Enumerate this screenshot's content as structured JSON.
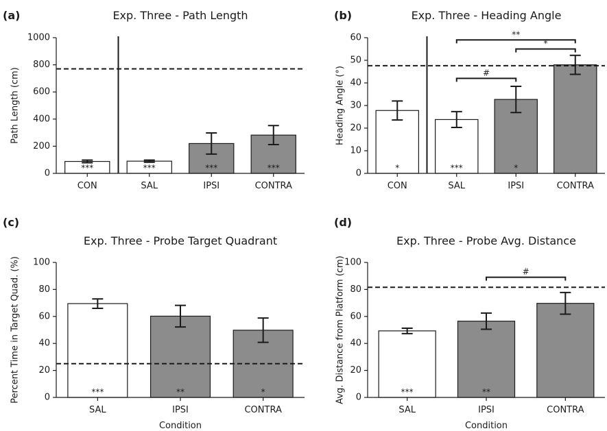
{
  "colors": {
    "sal_con_fill": "#ffffff",
    "treatment_fill": "#8c8c8c",
    "edge": "#1a1a1a"
  },
  "chart_data": [
    {
      "id": "a",
      "panel_label": "(a)",
      "type": "bar",
      "title": "Exp. Three - Path Length",
      "xlabel": "",
      "ylabel": "Path Length (cm)",
      "ylim": [
        0,
        1000
      ],
      "yticks": [
        0,
        200,
        400,
        600,
        800,
        1000
      ],
      "categories": [
        "CON",
        "SAL",
        "IPSI",
        "CONTRA"
      ],
      "values": [
        88,
        90,
        220,
        282
      ],
      "errors": [
        10,
        8,
        78,
        70
      ],
      "fills": [
        "white",
        "white",
        "gray",
        "gray"
      ],
      "bar_labels": [
        "***",
        "***",
        "***",
        "***"
      ],
      "reference_line": 770,
      "separator_after_index": 0,
      "comparisons": []
    },
    {
      "id": "b",
      "panel_label": "(b)",
      "type": "bar",
      "title": "Exp. Three - Heading Angle",
      "xlabel": "",
      "ylabel": "Heading Angle (°)",
      "ylim": [
        0,
        60
      ],
      "yticks": [
        0,
        10,
        20,
        30,
        40,
        50,
        60
      ],
      "categories": [
        "CON",
        "SAL",
        "IPSI",
        "CONTRA"
      ],
      "values": [
        27.8,
        23.8,
        32.7,
        48.0
      ],
      "errors": [
        4.2,
        3.5,
        5.8,
        4.2
      ],
      "fills": [
        "white",
        "white",
        "gray",
        "gray"
      ],
      "bar_labels": [
        "*",
        "***",
        "*",
        ""
      ],
      "reference_line": 47.6,
      "separator_after_index": 0,
      "comparisons": [
        {
          "from": 1,
          "to": 2,
          "y": 42,
          "label": "#"
        },
        {
          "from": 2,
          "to": 3,
          "y": 55,
          "label": "*"
        },
        {
          "from": 1,
          "to": 3,
          "y": 59,
          "label": "**"
        }
      ]
    },
    {
      "id": "c",
      "panel_label": "(c)",
      "type": "bar",
      "title": "Exp. Three - Probe Target Quadrant",
      "xlabel": "Condition",
      "ylabel": "Percent Time in Target Quad. (%)",
      "ylim": [
        0,
        100
      ],
      "yticks": [
        0,
        20,
        40,
        60,
        80,
        100
      ],
      "categories": [
        "SAL",
        "IPSI",
        "CONTRA"
      ],
      "values": [
        69.5,
        60.2,
        49.8
      ],
      "errors": [
        3.5,
        8,
        9
      ],
      "fills": [
        "white",
        "gray",
        "gray"
      ],
      "bar_labels": [
        "***",
        "**",
        "*"
      ],
      "reference_line": 25,
      "separator_after_index": null,
      "comparisons": []
    },
    {
      "id": "d",
      "panel_label": "(d)",
      "type": "bar",
      "title": "Exp. Three - Probe Avg. Distance",
      "xlabel": "Condition",
      "ylabel": "Avg. Distance from Platform (cm)",
      "ylim": [
        0,
        100
      ],
      "yticks": [
        0,
        20,
        40,
        60,
        80,
        100
      ],
      "categories": [
        "SAL",
        "IPSI",
        "CONTRA"
      ],
      "values": [
        49.3,
        56.5,
        69.7
      ],
      "errors": [
        2,
        6,
        8
      ],
      "fills": [
        "white",
        "gray",
        "gray"
      ],
      "bar_labels": [
        "***",
        "**",
        ""
      ],
      "reference_line": 81.6,
      "separator_after_index": null,
      "comparisons": [
        {
          "from": 1,
          "to": 2,
          "y": 89,
          "label": "#"
        }
      ]
    }
  ]
}
